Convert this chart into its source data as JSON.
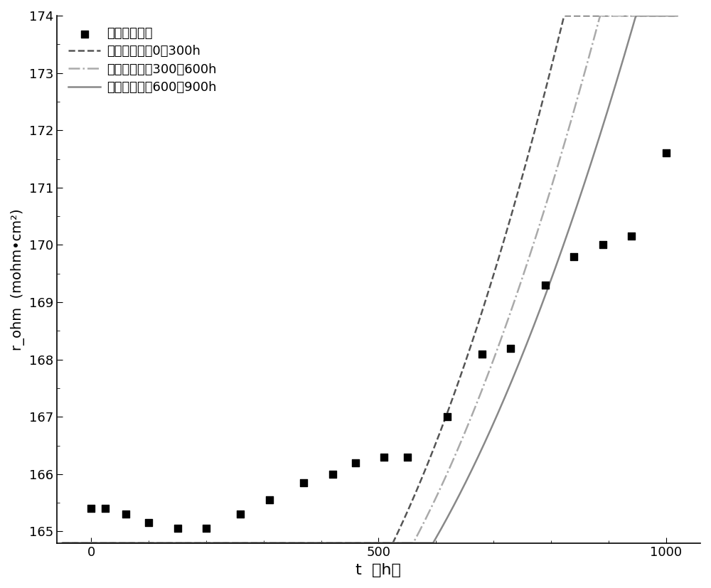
{
  "scatter_x": [
    0,
    25,
    60,
    100,
    150,
    200,
    260,
    310,
    370,
    420,
    460,
    510,
    550,
    620,
    680,
    730,
    790,
    840,
    890,
    940,
    1000
  ],
  "scatter_y": [
    165.4,
    165.4,
    165.3,
    165.15,
    165.05,
    165.05,
    165.3,
    165.55,
    165.85,
    166.0,
    166.2,
    166.3,
    166.3,
    167.0,
    168.1,
    168.2,
    169.3,
    169.8,
    170.0,
    170.15,
    171.6
  ],
  "curve1_label": "欧姆内阻估腹0｀300h",
  "curve2_label": "欧姆内阻估腹300｀600h",
  "curve3_label": "欧姆内阻估腹600｀900h",
  "scatter_label": "欧姆内阻实测",
  "xlabel": "t  （h）",
  "ylabel": "r_ohm  (mohm•cm²)",
  "xlim": [
    -60,
    1060
  ],
  "ylim": [
    164.8,
    174.0
  ],
  "yticks": [
    165,
    166,
    167,
    168,
    169,
    170,
    171,
    172,
    173,
    174
  ],
  "xticks": [
    0,
    500,
    1000
  ],
  "curve1_color": "#555555",
  "curve2_color": "#aaaaaa",
  "curve3_color": "#888888",
  "background_color": "#ffffff",
  "curve1_a": 3.4e-05,
  "curve1_t0": 220,
  "curve1_ymin": 164.93,
  "curve2_a": 2.9e-05,
  "curve2_t0": 235,
  "curve2_ymin": 164.93,
  "curve3_a": 2.5e-05,
  "curve3_t0": 250,
  "curve3_ymin": 164.95
}
